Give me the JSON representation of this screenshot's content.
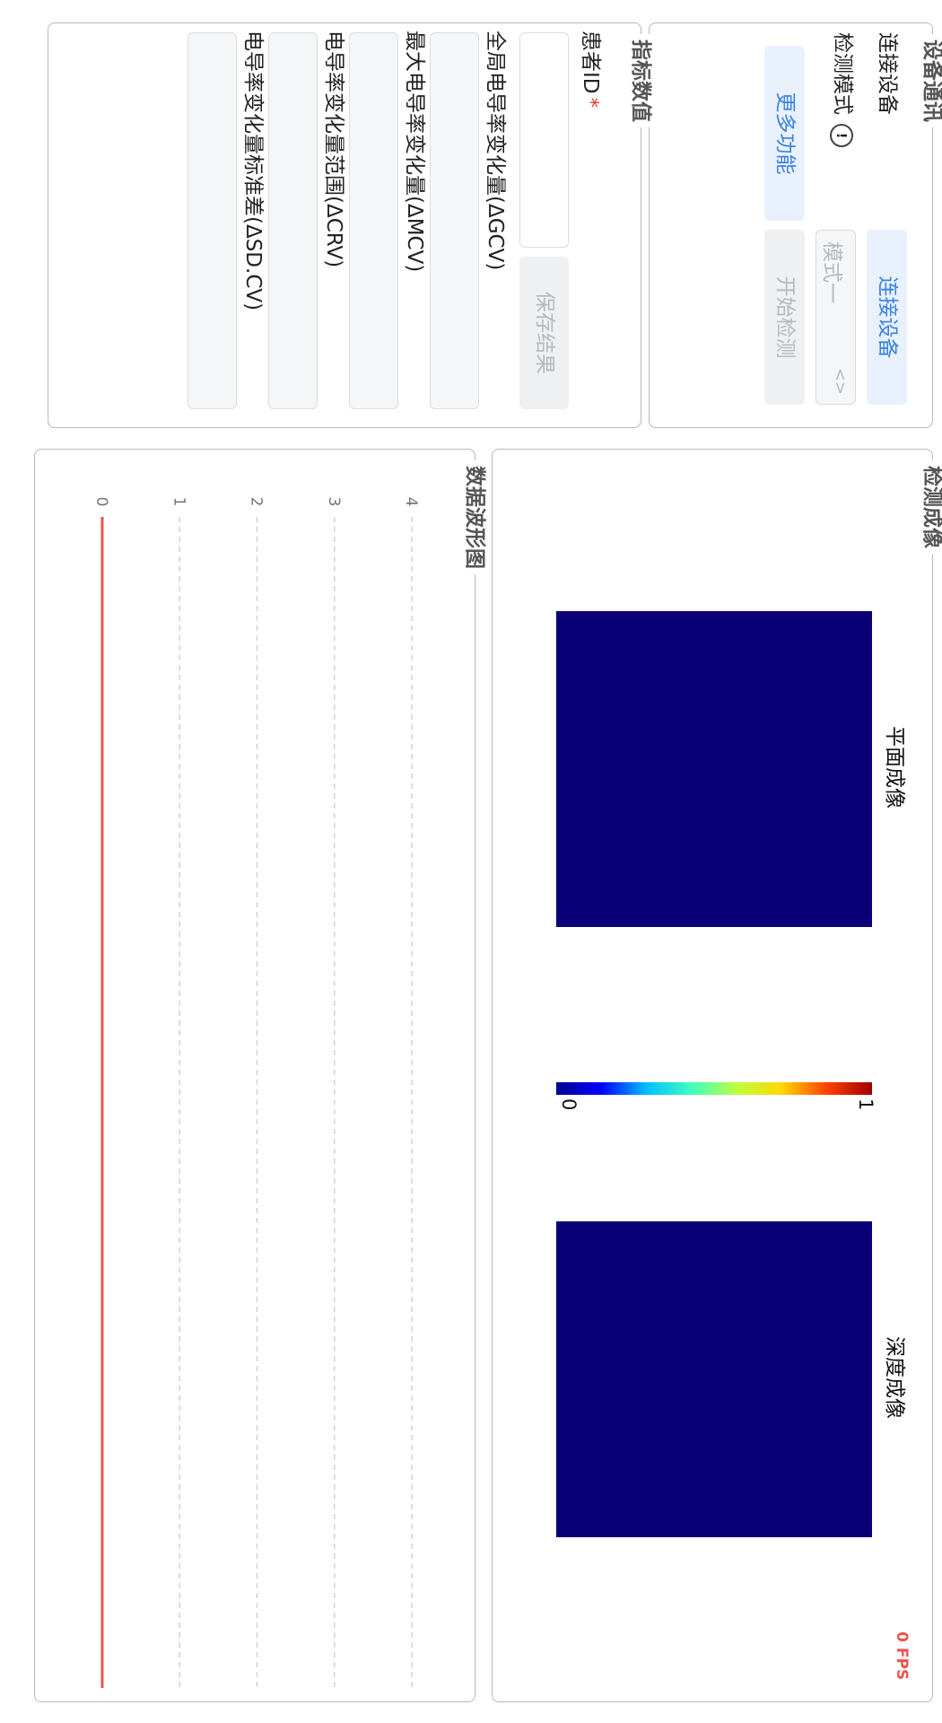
{
  "device": {
    "title": "设备通讯",
    "connect_label": "连接设备",
    "connect_button": "连接设备",
    "mode_label": "检测模式",
    "mode_value": "模式一",
    "more_button": "更多功能",
    "start_button": "开始检测"
  },
  "metrics": {
    "title": "指标数值",
    "patient_id_label": "患者ID",
    "required_mark": "*",
    "save_button": "保存结果",
    "fields": [
      "全局电导率变化量(ΔGCV)",
      "最大电导率变化量(ΔMCV)",
      "电导率变化量范围(ΔCRV)",
      "电导率变化量标准差(ΔSD.CV)"
    ]
  },
  "imaging": {
    "title": "检测成像",
    "plane_caption": "平面成像",
    "depth_caption": "深度成像",
    "colorbar_min": "0",
    "colorbar_max": "1",
    "fps": "0 FPS",
    "heatmap_color": "#0a0078"
  },
  "waveform": {
    "title": "数据波形图",
    "line_color": "#ef5350",
    "chart_data": {
      "type": "line",
      "y_ticks": [
        "4",
        "3",
        "2",
        "1",
        "0"
      ],
      "ylim": [
        0,
        4
      ],
      "series": [
        {
          "values": [
            0,
            0
          ]
        }
      ]
    }
  }
}
